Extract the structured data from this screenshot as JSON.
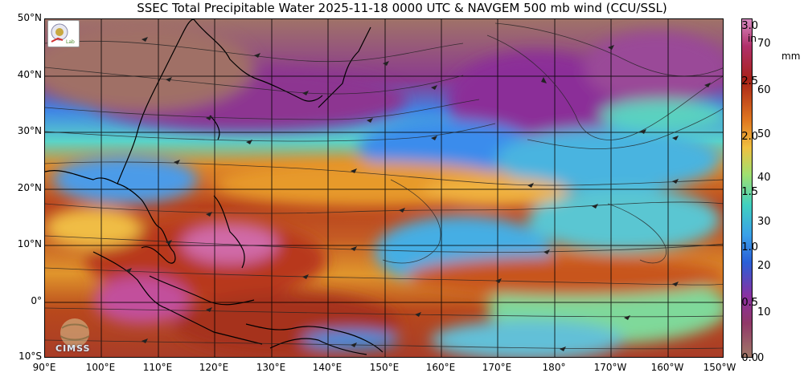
{
  "title": "SSEC Total Precipitable Water  2025-11-18 0000 UTC & NAVGEM 500 mb wind (CCU/SSL)",
  "lat_labels": [
    "50°N",
    "40°N",
    "30°N",
    "20°N",
    "10°N",
    "0°",
    "10°S"
  ],
  "lon_labels": [
    "90°E",
    "100°E",
    "110°E",
    "120°E",
    "130°E",
    "140°E",
    "150°E",
    "160°E",
    "170°E",
    "180°",
    "170°W",
    "160°W",
    "150°W"
  ],
  "colorbar": {
    "inch_unit": "in",
    "mm_unit": "mm",
    "inch_labels": [
      "3.0",
      "2.5",
      "2.0",
      "1.5",
      "1.0",
      "0.5",
      "0.0"
    ],
    "mm_labels": [
      "70",
      "60",
      "50",
      "40",
      "30",
      "20",
      "10",
      "0"
    ]
  },
  "logos": {
    "top": "SSEC logo",
    "bottom": "CIMSS"
  },
  "colors": {
    "dry_brown": "#9c6b62",
    "purple": "#8a2f9a",
    "blue": "#2f8fe8",
    "cyan": "#49d0d6",
    "green": "#8fe07a",
    "yellow": "#f2c84a",
    "orange": "#e8861e",
    "red": "#b2321a",
    "magenta": "#d25ea8"
  }
}
